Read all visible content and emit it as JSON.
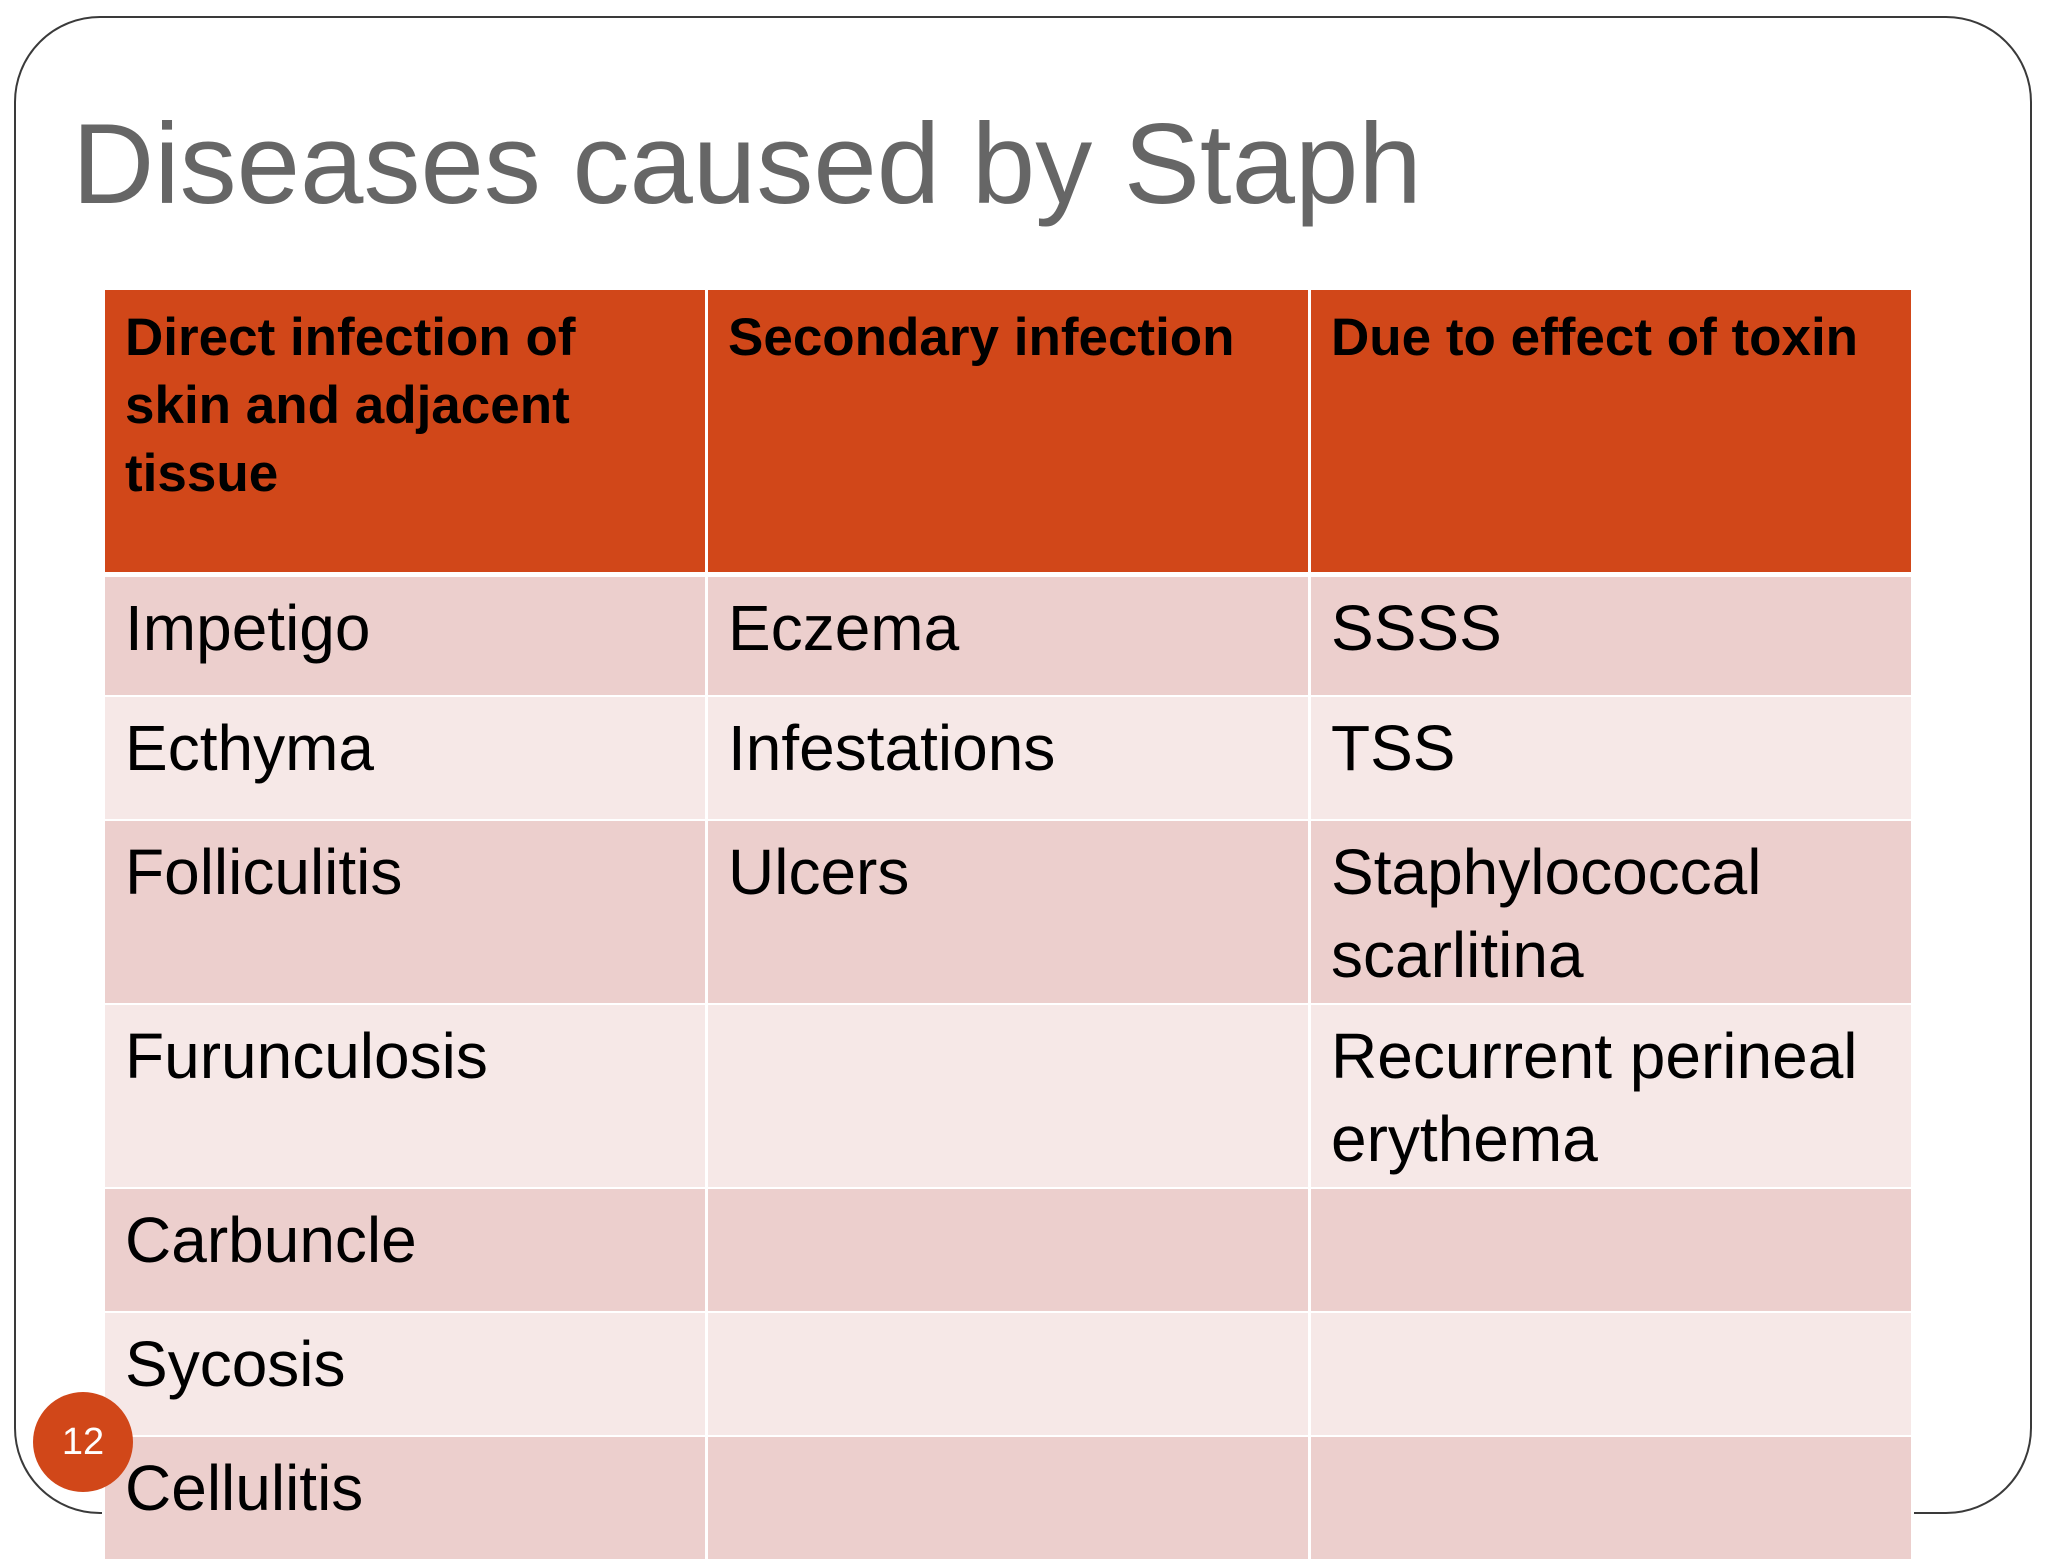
{
  "slide": {
    "title": "Diseases caused by Staph",
    "page_number": "12"
  },
  "colors": {
    "accent": "#d14719",
    "title_text": "#666666",
    "row_odd": "#eccfcd",
    "row_even": "#f6e8e7"
  },
  "table": {
    "headers": [
      "Direct infection of skin and adjacent tissue",
      "Secondary infection",
      "Due to effect of toxin"
    ],
    "rows": [
      [
        "Impetigo",
        "Eczema",
        "SSSS"
      ],
      [
        "Ecthyma",
        "Infestations",
        "TSS"
      ],
      [
        "Folliculitis",
        "Ulcers",
        "Staphylococcal scarlitina"
      ],
      [
        "Furunculosis",
        "",
        "Recurrent perineal erythema"
      ],
      [
        "Carbuncle",
        "",
        ""
      ],
      [
        "Sycosis",
        "",
        ""
      ],
      [
        "Cellulitis",
        "",
        ""
      ]
    ]
  }
}
